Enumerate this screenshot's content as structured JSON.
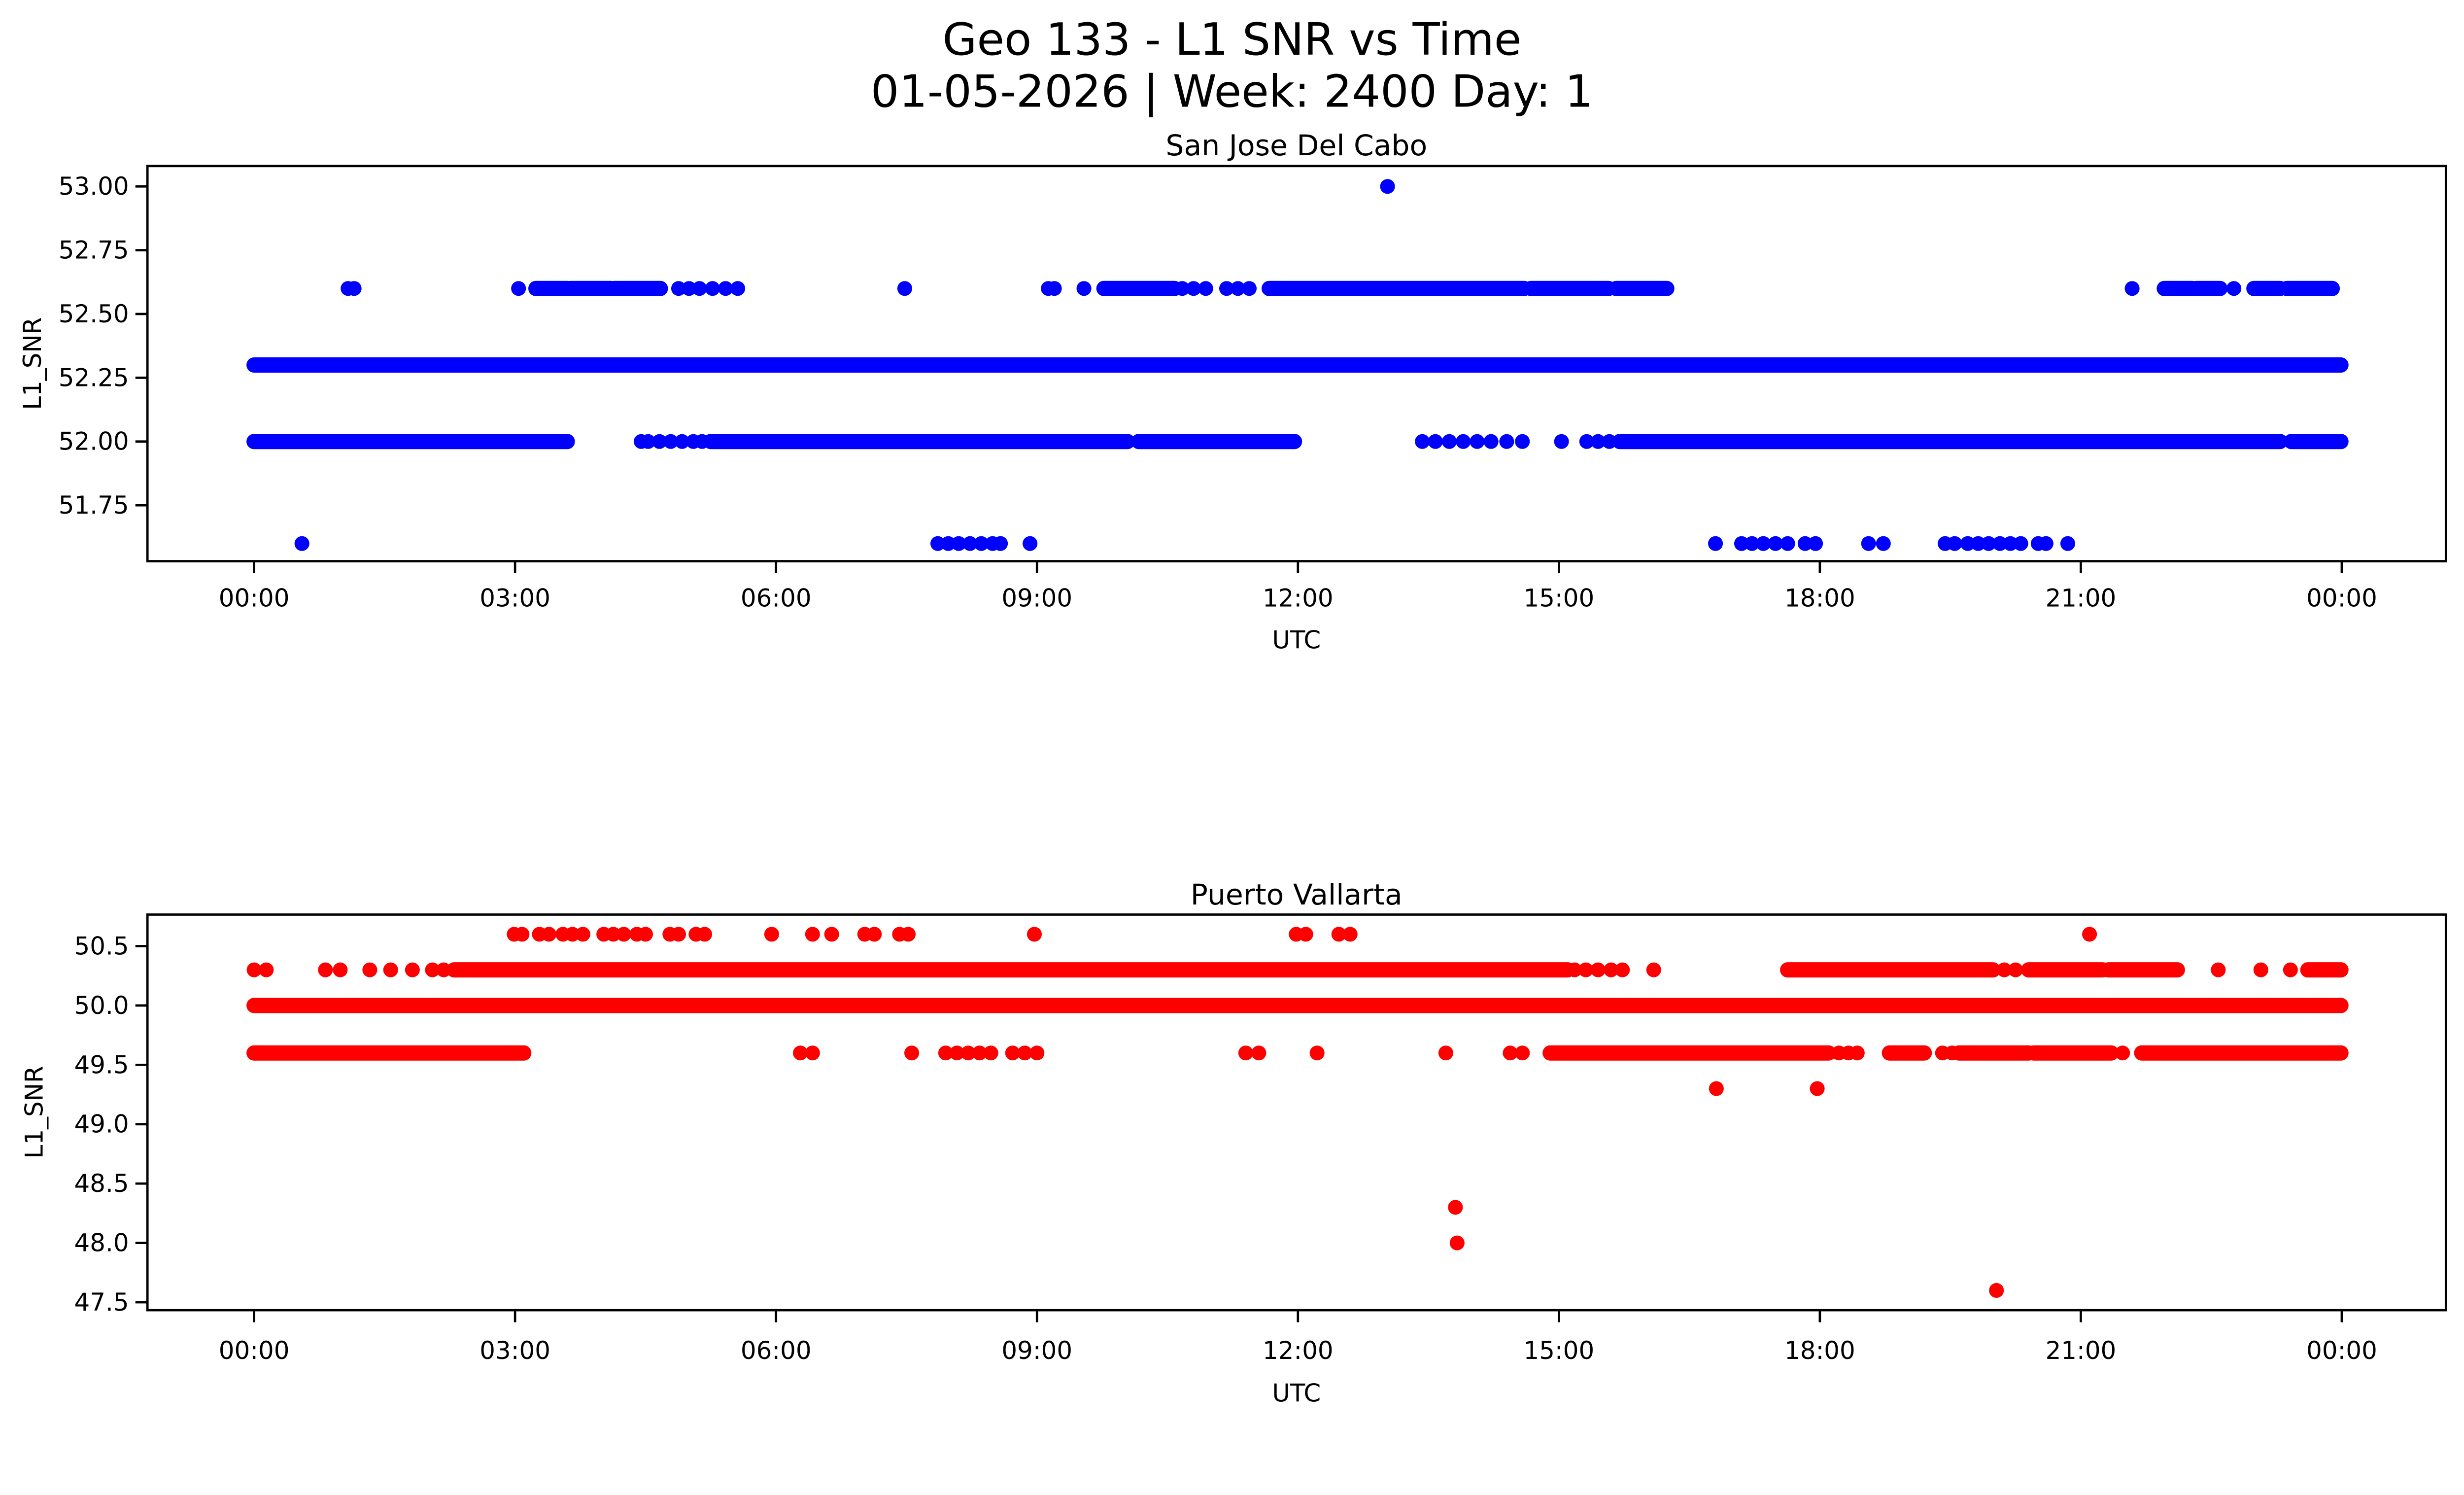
{
  "figure": {
    "title_line1": "Geo 133 - L1 SNR vs Time",
    "title_line2": "01-05-2026 | Week: 2400 Day: 1",
    "background_color": "#ffffff",
    "text_color": "#000000"
  },
  "chart_data": [
    {
      "type": "scatter",
      "title": "San Jose Del Cabo",
      "xlabel": "UTC",
      "ylabel": "L1_SNR",
      "color": "#0000ff",
      "marker_radius_px": 16,
      "xlim_hours": [
        -1.2,
        25.2
      ],
      "ylim": [
        51.53,
        53.07
      ],
      "grid": false,
      "legend": null,
      "x_ticks": [
        {
          "hour": 0,
          "label": "00:00"
        },
        {
          "hour": 3,
          "label": "03:00"
        },
        {
          "hour": 6,
          "label": "06:00"
        },
        {
          "hour": 9,
          "label": "09:00"
        },
        {
          "hour": 12,
          "label": "12:00"
        },
        {
          "hour": 15,
          "label": "15:00"
        },
        {
          "hour": 18,
          "label": "18:00"
        },
        {
          "hour": 21,
          "label": "21:00"
        },
        {
          "hour": 24,
          "label": "00:00"
        }
      ],
      "y_ticks": [
        {
          "value": 53.0,
          "label": "53.00"
        },
        {
          "value": 52.75,
          "label": "52.75"
        },
        {
          "value": 52.5,
          "label": "52.50"
        },
        {
          "value": 52.25,
          "label": "52.25"
        },
        {
          "value": 52.0,
          "label": "52.00"
        },
        {
          "value": 51.75,
          "label": "51.75"
        }
      ],
      "series": [
        {
          "snr": 53.0,
          "bands_hours": [],
          "dots_hours": [
            13.03
          ]
        },
        {
          "snr": 52.6,
          "bands_hours": [
            [
              3.24,
              3.6
            ],
            [
              3.64,
              4.1
            ],
            [
              4.14,
              4.67
            ],
            [
              9.77,
              10.58
            ],
            [
              11.67,
              14.6
            ],
            [
              14.68,
              15.57
            ],
            [
              15.66,
              16.24
            ],
            [
              21.96,
              22.28
            ],
            [
              22.33,
              22.6
            ],
            [
              22.99,
              23.29
            ],
            [
              23.37,
              23.89
            ]
          ],
          "dots_hours": [
            1.08,
            1.15,
            3.04,
            4.88,
            5.0,
            5.12,
            5.27,
            5.42,
            5.56,
            7.48,
            9.13,
            9.2,
            9.54,
            10.67,
            10.8,
            10.94,
            11.18,
            11.31,
            11.44,
            21.59,
            22.76
          ]
        },
        {
          "snr": 52.3,
          "bands_hours": [
            [
              0.0,
              23.99
            ]
          ],
          "dots_hours": []
        },
        {
          "snr": 52.0,
          "bands_hours": [
            [
              0.0,
              3.6
            ],
            [
              5.25,
              10.04
            ],
            [
              10.17,
              11.96
            ],
            [
              15.7,
              23.29
            ],
            [
              23.42,
              23.99
            ]
          ],
          "dots_hours": [
            4.45,
            4.53,
            4.66,
            4.79,
            4.92,
            5.05,
            5.15,
            13.43,
            13.58,
            13.74,
            13.9,
            14.06,
            14.22,
            14.4,
            14.58,
            15.03,
            15.32,
            15.45,
            15.58
          ]
        },
        {
          "snr": 51.6,
          "bands_hours": [],
          "dots_hours": [
            0.55,
            7.86,
            7.98,
            8.1,
            8.23,
            8.36,
            8.49,
            8.58,
            8.92,
            16.8,
            17.1,
            17.22,
            17.35,
            17.49,
            17.63,
            17.83,
            17.95,
            18.56,
            18.73,
            19.44,
            19.55,
            19.7,
            19.82,
            19.94,
            20.07,
            20.19,
            20.31,
            20.51,
            20.6,
            20.85
          ]
        }
      ]
    },
    {
      "type": "scatter",
      "title": "Puerto Vallarta",
      "xlabel": "UTC",
      "ylabel": "L1_SNR",
      "color": "#ff0000",
      "marker_radius_px": 16,
      "xlim_hours": [
        -1.2,
        25.2
      ],
      "ylim": [
        47.45,
        50.75
      ],
      "grid": false,
      "legend": null,
      "x_ticks": [
        {
          "hour": 0,
          "label": "00:00"
        },
        {
          "hour": 3,
          "label": "03:00"
        },
        {
          "hour": 6,
          "label": "06:00"
        },
        {
          "hour": 9,
          "label": "09:00"
        },
        {
          "hour": 12,
          "label": "12:00"
        },
        {
          "hour": 15,
          "label": "15:00"
        },
        {
          "hour": 18,
          "label": "18:00"
        },
        {
          "hour": 21,
          "label": "21:00"
        },
        {
          "hour": 24,
          "label": "00:00"
        }
      ],
      "y_ticks": [
        {
          "value": 50.5,
          "label": "50.5"
        },
        {
          "value": 50.0,
          "label": "50.0"
        },
        {
          "value": 49.5,
          "label": "49.5"
        },
        {
          "value": 49.0,
          "label": "49.0"
        },
        {
          "value": 48.5,
          "label": "48.5"
        },
        {
          "value": 48.0,
          "label": "48.0"
        },
        {
          "value": 47.5,
          "label": "47.5"
        }
      ],
      "series": [
        {
          "snr": 50.6,
          "bands_hours": [],
          "dots_hours": [
            2.99,
            3.08,
            3.28,
            3.39,
            3.55,
            3.66,
            3.78,
            4.02,
            4.13,
            4.25,
            4.4,
            4.5,
            4.78,
            4.88,
            5.08,
            5.18,
            5.95,
            6.42,
            6.64,
            7.02,
            7.13,
            7.42,
            7.52,
            8.97,
            11.98,
            12.09,
            12.47,
            12.6,
            21.1
          ]
        },
        {
          "snr": 50.3,
          "bands_hours": [
            [
              2.3,
              15.1
            ],
            [
              17.63,
              19.99
            ],
            [
              20.4,
              21.25
            ],
            [
              21.32,
              22.11
            ],
            [
              23.61,
              23.99
            ]
          ],
          "dots_hours": [
            0.0,
            0.14,
            0.82,
            0.99,
            1.33,
            1.57,
            1.82,
            2.05,
            2.18,
            15.18,
            15.31,
            15.45,
            15.6,
            15.73,
            16.09,
            20.12,
            20.25,
            22.58,
            23.07,
            23.41
          ]
        },
        {
          "snr": 50.0,
          "bands_hours": [
            [
              0.0,
              23.99
            ]
          ],
          "dots_hours": []
        },
        {
          "snr": 49.6,
          "bands_hours": [
            [
              0.0,
              3.1
            ],
            [
              14.9,
              18.1
            ],
            [
              18.8,
              19.2
            ],
            [
              19.6,
              20.4
            ],
            [
              20.46,
              21.35
            ],
            [
              21.7,
              23.99
            ]
          ],
          "dots_hours": [
            6.28,
            6.42,
            7.56,
            7.95,
            8.08,
            8.21,
            8.34,
            8.47,
            8.72,
            8.86,
            9.0,
            11.4,
            11.55,
            12.22,
            13.7,
            14.44,
            14.58,
            18.22,
            18.33,
            18.43,
            19.41,
            19.52,
            21.48
          ]
        },
        {
          "snr": 49.3,
          "bands_hours": [],
          "dots_hours": [
            16.81,
            17.97
          ]
        },
        {
          "snr": 48.3,
          "bands_hours": [],
          "dots_hours": [
            13.81
          ]
        },
        {
          "snr": 48.0,
          "bands_hours": [],
          "dots_hours": [
            13.83
          ]
        },
        {
          "snr": 47.6,
          "bands_hours": [],
          "dots_hours": [
            20.03
          ]
        }
      ]
    }
  ]
}
